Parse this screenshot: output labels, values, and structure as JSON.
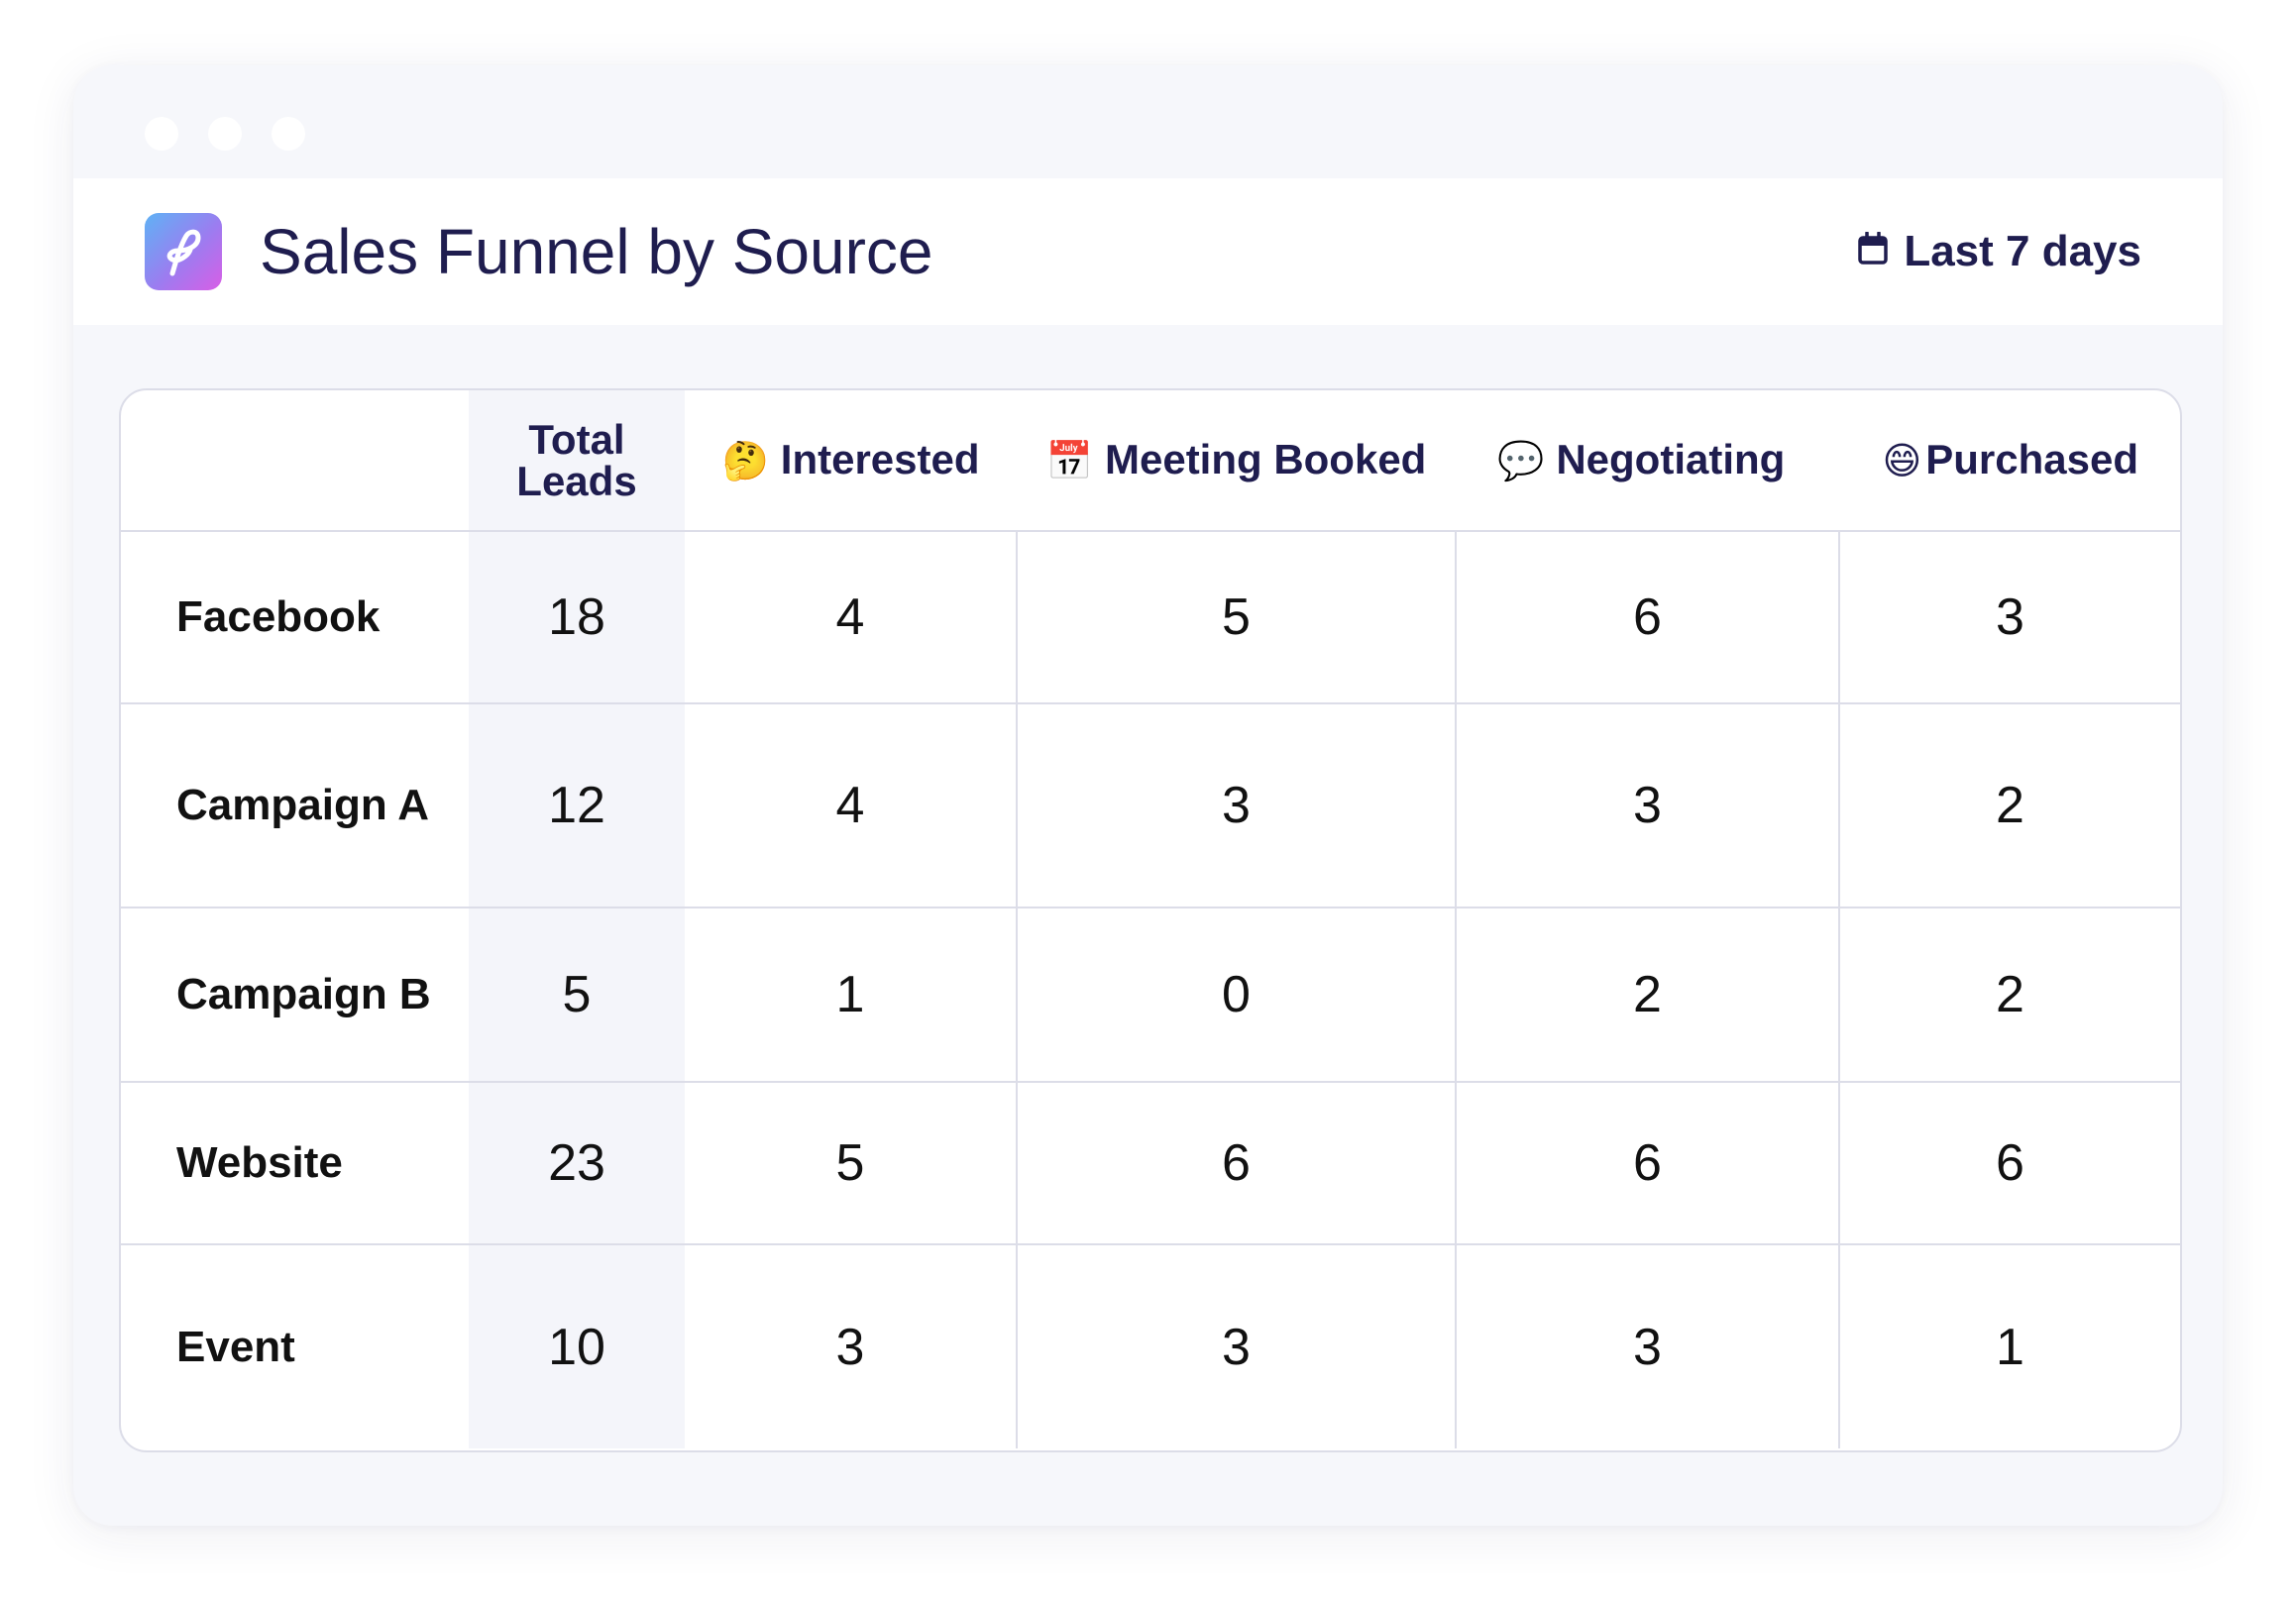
{
  "header": {
    "title": "Sales Funnel by Source",
    "date_range": "Last 7 days",
    "logo_icon": "app-logo-icon",
    "calendar_icon": "calendar-icon"
  },
  "table": {
    "columns": [
      {
        "label": "",
        "emoji": ""
      },
      {
        "label": "Total Leads",
        "emoji": ""
      },
      {
        "label": "Interested",
        "emoji": "🤔"
      },
      {
        "label": "Meeting Booked",
        "emoji": "📅"
      },
      {
        "label": "Negotiating",
        "emoji": "💬"
      },
      {
        "label": "Purchased",
        "emoji": "😄"
      }
    ],
    "rows": [
      {
        "source": "Facebook",
        "total": "18",
        "interested": "4",
        "meeting": "5",
        "negotiating": "6",
        "purchased": "3"
      },
      {
        "source": "Campaign A",
        "total": "12",
        "interested": "4",
        "meeting": "3",
        "negotiating": "3",
        "purchased": "2"
      },
      {
        "source": "Campaign B",
        "total": "5",
        "interested": "1",
        "meeting": "0",
        "negotiating": "2",
        "purchased": "2"
      },
      {
        "source": "Website",
        "total": "23",
        "interested": "5",
        "meeting": "6",
        "negotiating": "6",
        "purchased": "6"
      },
      {
        "source": "Event",
        "total": "10",
        "interested": "3",
        "meeting": "3",
        "negotiating": "3",
        "purchased": "1"
      }
    ]
  },
  "colors": {
    "text_primary": "#1f1d4f",
    "background": "#f6f7fb",
    "border": "#dcdde8",
    "highlight_column": "#f4f5fa"
  }
}
